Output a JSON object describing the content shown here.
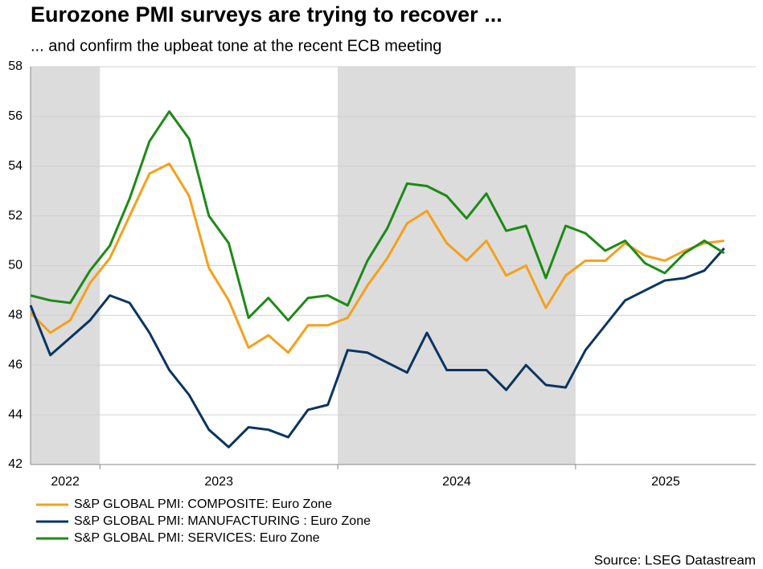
{
  "chart_data": {
    "type": "line",
    "title": "Eurozone PMI surveys are trying to recover ...",
    "subtitle": "... and confirm the upbeat tone at the recent ECB meeting",
    "source": "Source: LSEG Datastream",
    "x": [
      "2022-09",
      "2022-10",
      "2022-11",
      "2022-12",
      "2023-01",
      "2023-02",
      "2023-03",
      "2023-04",
      "2023-05",
      "2023-06",
      "2023-07",
      "2023-08",
      "2023-09",
      "2023-10",
      "2023-11",
      "2023-12",
      "2024-01",
      "2024-02",
      "2024-03",
      "2024-04",
      "2024-05",
      "2024-06",
      "2024-07",
      "2024-08",
      "2024-09",
      "2024-10",
      "2024-11",
      "2024-12",
      "2025-01",
      "2025-02",
      "2025-03",
      "2025-04",
      "2025-05",
      "2025-06",
      "2025-07",
      "2025-08"
    ],
    "year_labels": [
      "2022",
      "2023",
      "2024",
      "2025"
    ],
    "shaded_years": [
      "2022",
      "2024"
    ],
    "series": [
      {
        "name": "S&P GLOBAL PMI: COMPOSITE: Euro Zone",
        "color": "#f5a01a",
        "values": [
          48.1,
          47.3,
          47.8,
          49.3,
          50.3,
          52.0,
          53.7,
          54.1,
          52.8,
          49.9,
          48.6,
          46.7,
          47.2,
          46.5,
          47.6,
          47.6,
          47.9,
          49.2,
          50.3,
          51.7,
          52.2,
          50.9,
          50.2,
          51.0,
          49.6,
          50.0,
          48.3,
          49.6,
          50.2,
          50.2,
          50.9,
          50.4,
          50.2,
          50.6,
          50.9,
          51.0
        ]
      },
      {
        "name": "S&P GLOBAL PMI: MANUFACTURING : Euro Zone",
        "color": "#0b3462",
        "values": [
          48.4,
          46.4,
          47.1,
          47.8,
          48.8,
          48.5,
          47.3,
          45.8,
          44.8,
          43.4,
          42.7,
          43.5,
          43.4,
          43.1,
          44.2,
          44.4,
          46.6,
          46.5,
          46.1,
          45.7,
          47.3,
          45.8,
          45.8,
          45.8,
          45.0,
          46.0,
          45.2,
          45.1,
          46.6,
          47.6,
          48.6,
          49.0,
          49.4,
          49.5,
          49.8,
          50.7
        ]
      },
      {
        "name": "S&P GLOBAL PMI: SERVICES: Euro Zone",
        "color": "#1d8a16",
        "values": [
          48.8,
          48.6,
          48.5,
          49.8,
          50.8,
          52.7,
          55.0,
          56.2,
          55.1,
          52.0,
          50.9,
          47.9,
          48.7,
          47.8,
          48.7,
          48.8,
          48.4,
          50.2,
          51.5,
          53.3,
          53.2,
          52.8,
          51.9,
          52.9,
          51.4,
          51.6,
          49.5,
          51.6,
          51.3,
          50.6,
          51.0,
          50.1,
          49.7,
          50.5,
          51.0,
          50.5
        ]
      }
    ],
    "ylim": [
      42,
      58
    ],
    "yticks": [
      42,
      44,
      46,
      48,
      50,
      52,
      54,
      56,
      58
    ],
    "grid": true
  }
}
